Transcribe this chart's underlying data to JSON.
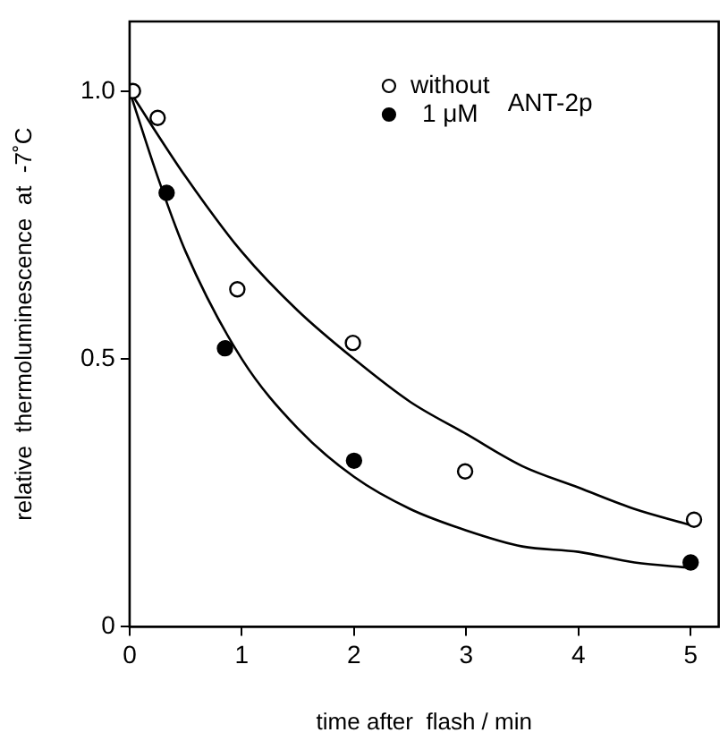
{
  "chart_data": {
    "type": "scatter",
    "xlabel": "time after  flash / min",
    "ylabel": "relative  thermoluminescence  at  -7˚C",
    "legend_title": "ANT-2p",
    "legend": "top right",
    "grid": false,
    "marker": "circle",
    "xlim": [
      0,
      5.25
    ],
    "xticks": [
      0,
      1,
      2,
      3,
      4,
      5
    ],
    "ylim": [
      0,
      1.13
    ],
    "yticks": [
      0,
      {
        "value": 0.5,
        "label": "0.5"
      },
      {
        "value": 1,
        "label": "1.0"
      }
    ],
    "series": [
      {
        "name": "without",
        "color": "#ffffff",
        "x": [
          0.03,
          0.25,
          0.96,
          1.99,
          2.99,
          5.03
        ],
        "values": [
          1.0,
          0.95,
          0.63,
          0.53,
          0.29,
          0.2
        ]
      },
      {
        "name": "1 μM",
        "color": "#000000",
        "x": [
          0.33,
          0.85,
          2.0,
          5.0
        ],
        "values": [
          0.81,
          0.52,
          0.31,
          0.12
        ]
      },
      {
        "type": "line",
        "color": "#000000",
        "marker": "none",
        "x": [
          0,
          0.5,
          1,
          1.5,
          2,
          2.5,
          3,
          3.5,
          4,
          4.5,
          5
        ],
        "values": [
          1.0,
          0.84,
          0.7,
          0.59,
          0.5,
          0.42,
          0.36,
          0.3,
          0.26,
          0.22,
          0.19
        ]
      },
      {
        "type": "line",
        "color": "#000000",
        "marker": "none",
        "x": [
          0,
          0.25,
          0.5,
          1,
          1.5,
          2,
          2.5,
          3,
          3.5,
          4,
          4.5,
          5
        ],
        "values": [
          1.0,
          0.84,
          0.7,
          0.5,
          0.37,
          0.28,
          0.22,
          0.18,
          0.15,
          0.14,
          0.12,
          0.11
        ]
      }
    ]
  }
}
